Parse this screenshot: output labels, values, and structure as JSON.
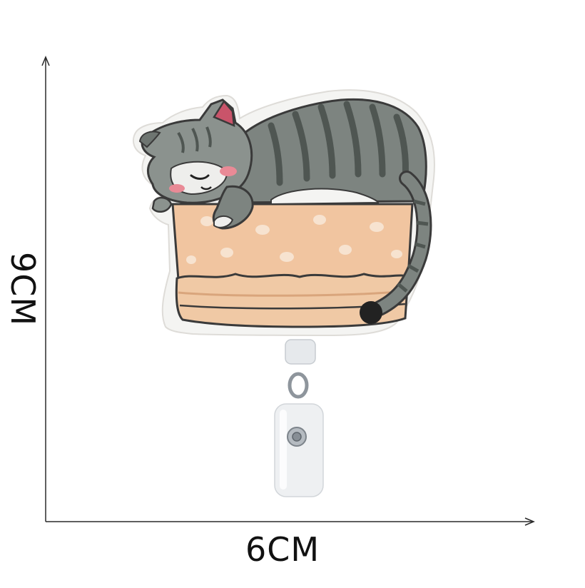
{
  "dimensions": {
    "height_label": "9CM",
    "width_label": "6CM"
  },
  "product": {
    "subject": "embroidered-sleeping-cat-in-bread-basket-badge-reel"
  },
  "colors": {
    "background": "#ffffff",
    "axis": "#2a2a2a",
    "felt_border": "#f4f4f2",
    "cat_grey": "#7d8480",
    "cat_stripe": "#4f5652",
    "cat_light": "#a3aaa6",
    "ear_pink": "#c9546a",
    "blush": "#e98a96",
    "basket": "#f1c5a0",
    "basket_dark": "#d9a57c",
    "basket_dots": "#f7e3d0",
    "outline": "#3a3a3a",
    "tail_tip": "#222222",
    "clip": "#eef0f2",
    "metal": "#9aa0a6"
  }
}
